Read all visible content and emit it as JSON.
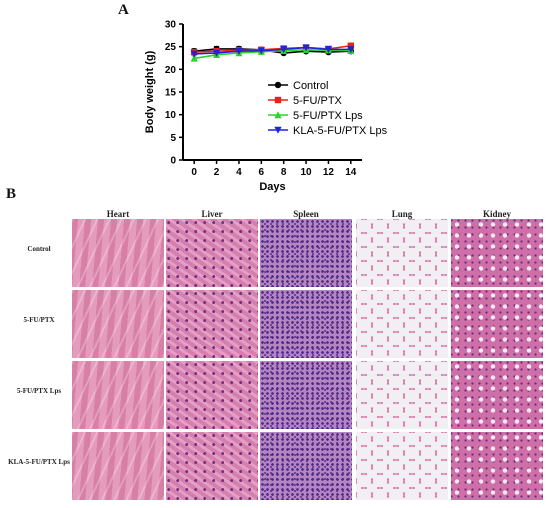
{
  "panels": {
    "a_label": "A",
    "b_label": "B"
  },
  "chart_data": {
    "type": "line",
    "xlabel": "Days",
    "ylabel": "Body weight (g)",
    "x": [
      0,
      2,
      4,
      6,
      8,
      10,
      12,
      14
    ],
    "xlim": [
      -1,
      15
    ],
    "ylim": [
      0,
      30
    ],
    "xticks": [
      0,
      2,
      4,
      6,
      8,
      10,
      12,
      14
    ],
    "yticks": [
      0,
      5,
      10,
      15,
      20,
      25,
      30
    ],
    "legend_position": "right",
    "series": [
      {
        "name": "Control",
        "color": "#000000",
        "marker": "circle",
        "values": [
          24.0,
          24.5,
          24.5,
          24.3,
          23.6,
          24.0,
          23.8,
          24.0
        ]
      },
      {
        "name": "5-FU/PTX",
        "color": "#e8221b",
        "marker": "square",
        "values": [
          23.8,
          24.0,
          24.2,
          24.3,
          24.6,
          24.8,
          24.5,
          25.2
        ]
      },
      {
        "name": "5-FU/PTX Lps",
        "color": "#2ed12e",
        "marker": "triangle-up",
        "values": [
          22.4,
          23.2,
          23.6,
          23.9,
          24.1,
          24.3,
          24.2,
          24.1
        ]
      },
      {
        "name": "KLA-5-FU/PTX Lps",
        "color": "#1f25d6",
        "marker": "triangle-down",
        "values": [
          23.4,
          23.6,
          24.0,
          24.1,
          24.4,
          24.8,
          24.4,
          24.4
        ]
      }
    ]
  },
  "histology": {
    "columns": [
      "Heart",
      "Liver",
      "Spleen",
      "Lung",
      "Kidney"
    ],
    "rows": [
      "Control",
      "5-FU/PTX",
      "5-FU/PTX Lps",
      "KLA-5-FU/PTX Lps"
    ],
    "tile_types": [
      "tile-heart",
      "tile-liver",
      "tile-spleen",
      "tile-lung",
      "tile-kidney"
    ]
  }
}
